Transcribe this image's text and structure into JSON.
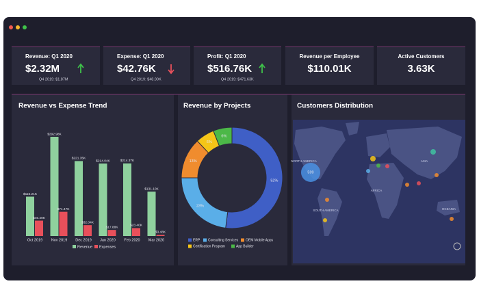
{
  "kpis": [
    {
      "title": "Revenue: Q1 2020",
      "value": "$2.32M",
      "previous": "Q4 2019: $1.87M"
    },
    {
      "title": "Expense: Q1 2020",
      "value": "$42.76K",
      "previous": "Q4 2019: $48.90K"
    },
    {
      "title": "Profit: Q1 2020",
      "value": "$516.76K",
      "previous": "Q4 2019: $471.63K"
    },
    {
      "title": "Revenue per Employee",
      "value": "$110.01K"
    },
    {
      "title": "Active Customers",
      "value": "3.63K"
    }
  ],
  "chart_data": [
    {
      "type": "bar",
      "title": "Revenue vs Expense Trend",
      "categories": [
        "Oct 2019",
        "Nov 2019",
        "Dec 2019",
        "Jan 2020",
        "Feb 2020",
        "Mar 2020"
      ],
      "series": [
        {
          "name": "Revenue",
          "color": "#8fd19e",
          "values": [
            116.21,
            292.98,
            221.35,
            214.04,
            214.37,
            131.1
          ],
          "value_labels": [
            "$116.21K",
            "$292.98K",
            "$221.35K",
            "$214.04K",
            "$214.37K",
            "$131.10K"
          ]
        },
        {
          "name": "Expenses",
          "color": "#e8505b",
          "values": [
            45.4,
            71.47,
            32.04,
            17.88,
            23.4,
            3.48
          ],
          "value_labels": [
            "$45.40K",
            "$71.47K",
            "$32.04K",
            "$17.88K",
            "$23.40K",
            "$3.48K"
          ]
        }
      ]
    },
    {
      "type": "pie",
      "title": "Revenue by Projects",
      "categories": [
        "ERP",
        "Consulting Services",
        "OEM Mobile Apps",
        "Certification Program",
        "App Builder"
      ],
      "values": [
        52,
        23,
        13,
        6,
        6
      ],
      "value_labels": [
        "52%",
        "23%",
        "13%",
        "6%",
        "6%"
      ],
      "colors": [
        "#3f5fc6",
        "#5aaee8",
        "#f08c2e",
        "#f5c518",
        "#4cb848"
      ]
    }
  ],
  "map": {
    "title": "Customers Distribution",
    "regions": [
      "NORTH AMERICA",
      "SOUTH AMERICA",
      "AFRICA",
      "ASIA",
      "OCEANIA"
    ],
    "bubbles": [
      {
        "value": 599
      }
    ]
  }
}
